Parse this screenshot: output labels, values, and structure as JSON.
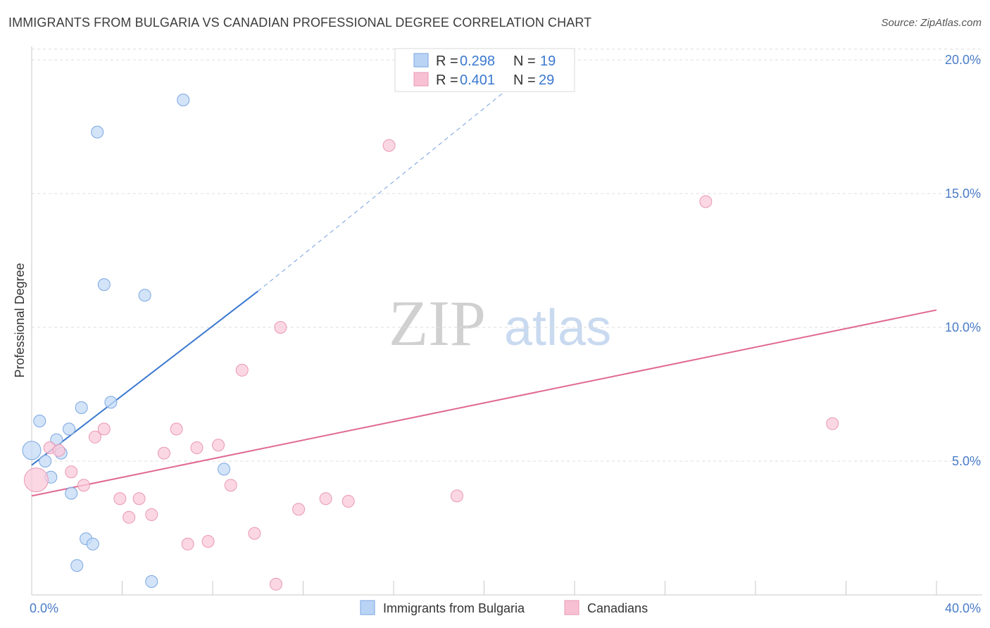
{
  "title": "IMMIGRANTS FROM BULGARIA VS CANADIAN PROFESSIONAL DEGREE CORRELATION CHART",
  "source": "Source: ZipAtlas.com",
  "watermark": {
    "zip": "ZIP",
    "atlas": "atlas"
  },
  "colors": {
    "blue": "#3a78d0",
    "blue_fill": "#b9d3f5",
    "pink": "#e06892",
    "pink_fill": "#f8c1d3",
    "grid": "#dcdcdc",
    "tick_label": "#4a7cc8"
  },
  "legend": {
    "items": [
      {
        "r_label": "R = ",
        "r_value": "0.298",
        "n_label": "N = ",
        "n_value": "19"
      },
      {
        "r_label": "R = ",
        "r_value": "0.401",
        "n_label": "N = ",
        "n_value": "29"
      }
    ]
  },
  "chart_data": {
    "type": "scatter",
    "title": "IMMIGRANTS FROM BULGARIA VS CANADIAN PROFESSIONAL DEGREE CORRELATION CHART",
    "xlabel": "",
    "ylabel": "Professional Degree",
    "xlim": [
      0,
      40
    ],
    "ylim": [
      0,
      20.5
    ],
    "x_tick_labels": [
      "0.0%",
      "40.0%"
    ],
    "y_ticks": [
      5,
      10,
      15,
      20
    ],
    "y_tick_labels": [
      "5.0%",
      "10.0%",
      "15.0%",
      "20.0%"
    ],
    "grid": true,
    "legend_position": "top-center",
    "series": [
      {
        "name": "Immigrants from Bulgaria",
        "color": "#3a78d0",
        "points": [
          [
            0.0,
            5.4
          ],
          [
            0.35,
            6.5
          ],
          [
            0.6,
            5.0
          ],
          [
            0.85,
            4.4
          ],
          [
            1.1,
            5.8
          ],
          [
            1.3,
            5.3
          ],
          [
            1.65,
            6.2
          ],
          [
            1.75,
            3.8
          ],
          [
            2.0,
            1.1
          ],
          [
            2.2,
            7.0
          ],
          [
            2.4,
            2.1
          ],
          [
            2.7,
            1.9
          ],
          [
            2.9,
            17.3
          ],
          [
            3.2,
            11.6
          ],
          [
            3.5,
            7.2
          ],
          [
            5.0,
            11.2
          ],
          [
            5.3,
            0.5
          ],
          [
            6.7,
            18.5
          ],
          [
            8.5,
            4.7
          ]
        ],
        "trend": {
          "x": [
            0.0,
            10.0
          ],
          "y": [
            4.85,
            11.35
          ],
          "extend_dashed_to": [
            22.5,
            19.9
          ]
        }
      },
      {
        "name": "Canadians",
        "color": "#e06892",
        "points": [
          [
            0.2,
            4.3
          ],
          [
            0.8,
            5.5
          ],
          [
            1.2,
            5.4
          ],
          [
            1.75,
            4.6
          ],
          [
            2.3,
            4.1
          ],
          [
            2.8,
            5.9
          ],
          [
            3.2,
            6.2
          ],
          [
            3.9,
            3.6
          ],
          [
            4.3,
            2.9
          ],
          [
            4.75,
            3.6
          ],
          [
            5.3,
            3.0
          ],
          [
            5.85,
            5.3
          ],
          [
            6.4,
            6.2
          ],
          [
            6.9,
            1.9
          ],
          [
            7.3,
            5.5
          ],
          [
            7.8,
            2.0
          ],
          [
            8.25,
            5.6
          ],
          [
            8.8,
            4.1
          ],
          [
            9.3,
            8.4
          ],
          [
            9.85,
            2.3
          ],
          [
            10.8,
            0.4
          ],
          [
            11.0,
            10.0
          ],
          [
            11.8,
            3.2
          ],
          [
            13.0,
            3.6
          ],
          [
            14.0,
            3.5
          ],
          [
            15.8,
            16.8
          ],
          [
            18.8,
            3.7
          ],
          [
            29.8,
            14.7
          ],
          [
            35.4,
            6.4
          ]
        ],
        "trend": {
          "x": [
            0.0,
            40.0
          ],
          "y": [
            3.7,
            10.65
          ]
        }
      }
    ]
  }
}
